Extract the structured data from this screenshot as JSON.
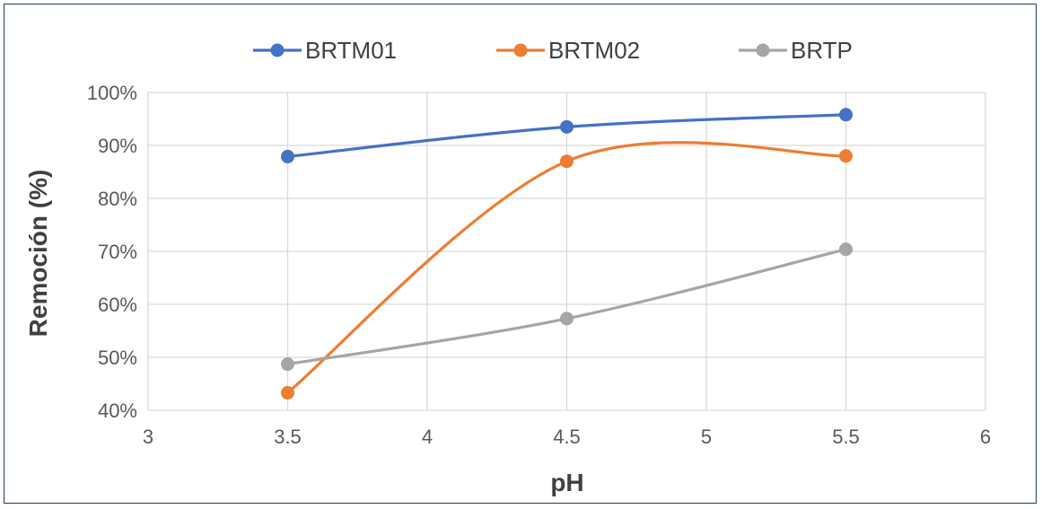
{
  "chart_data": {
    "type": "line",
    "smooth": true,
    "xlabel": "pH",
    "ylabel": "Remoción (%)",
    "xlim": [
      3,
      6
    ],
    "ylim": [
      0.4,
      1.0
    ],
    "x_ticks": [
      "3",
      "3.5",
      "4",
      "4.5",
      "5",
      "5.5",
      "6"
    ],
    "y_ticks": [
      "40%",
      "50%",
      "60%",
      "70%",
      "80%",
      "90%",
      "100%"
    ],
    "grid": true,
    "legend_position": "top",
    "x": [
      3.5,
      4.5,
      5.5
    ],
    "series": [
      {
        "name": "BRTM01",
        "color": "#4472c4",
        "values": [
          0.879,
          0.935,
          0.958
        ]
      },
      {
        "name": "BRTM02",
        "color": "#ed7d31",
        "values": [
          0.433,
          0.87,
          0.88
        ]
      },
      {
        "name": "BRTP",
        "color": "#a5a5a5",
        "values": [
          0.487,
          0.573,
          0.704
        ]
      }
    ]
  }
}
